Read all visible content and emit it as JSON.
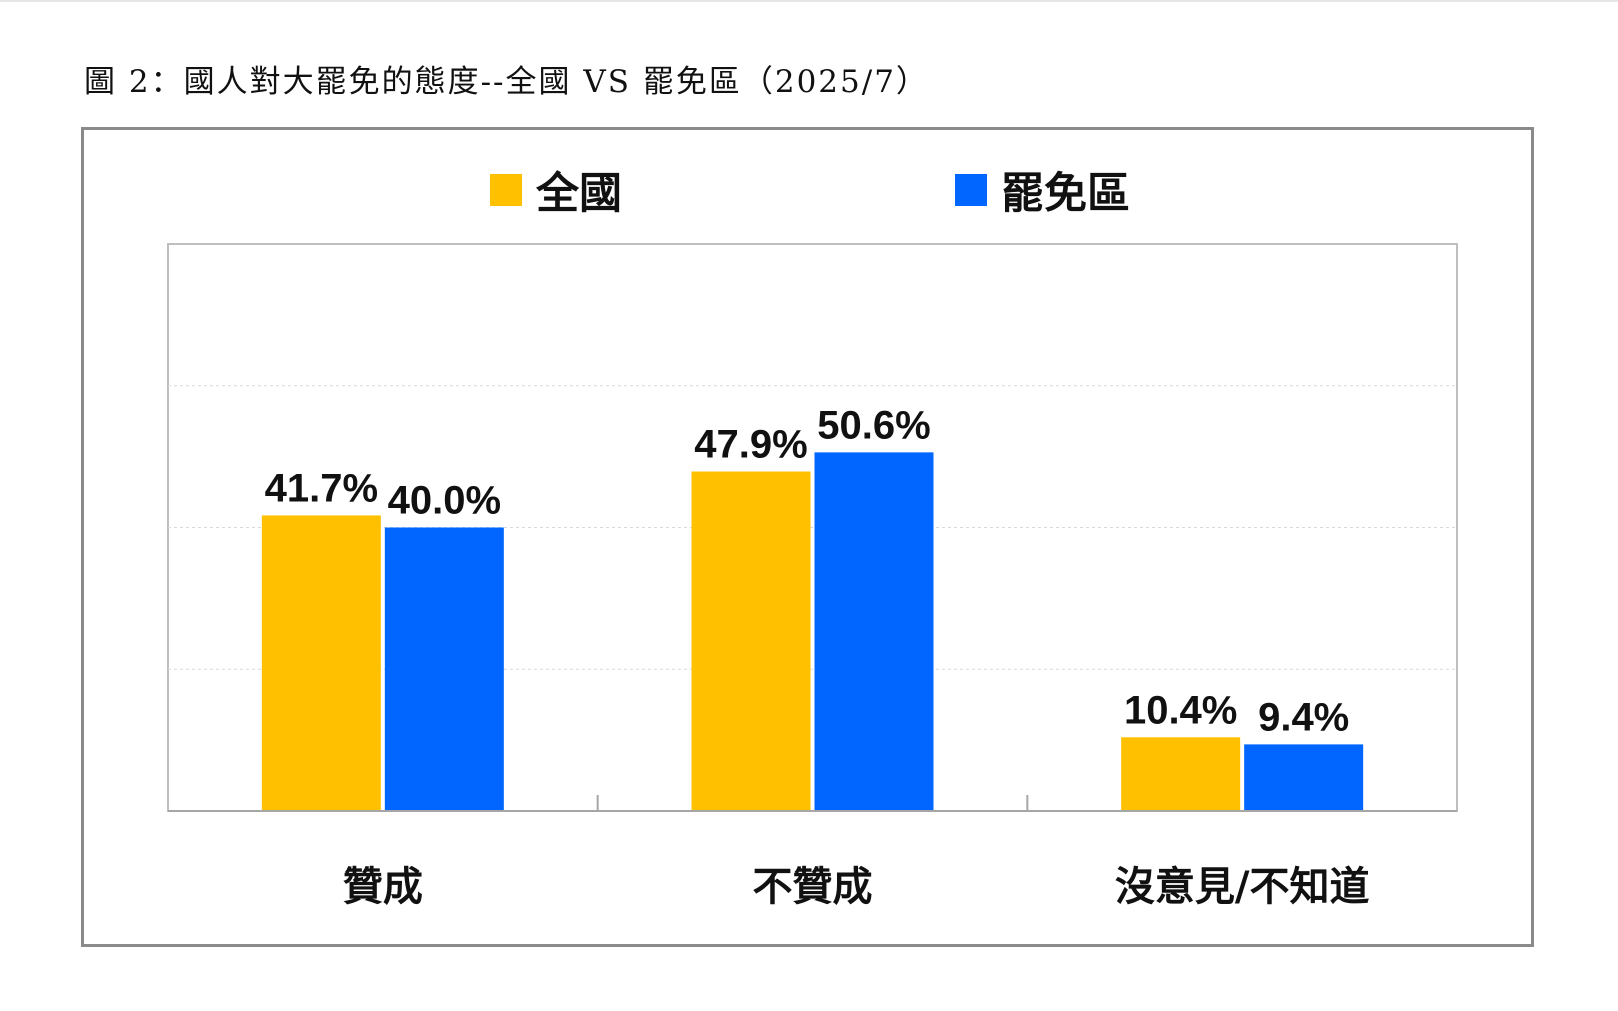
{
  "caption": "圖 2：國人對大罷免的態度--全國 VS 罷免區（2025/7）",
  "chart_data": {
    "type": "bar",
    "title": "圖 2：國人對大罷免的態度--全國 VS 罷免區（2025/7）",
    "categories": [
      "贊成",
      "不贊成",
      "沒意見/不知道"
    ],
    "series": [
      {
        "name": "全國",
        "color": "#FFC000",
        "values": [
          41.7,
          47.9,
          10.4
        ],
        "labels": [
          "41.7%",
          "47.9%",
          "10.4%"
        ]
      },
      {
        "name": "罷免區",
        "color": "#0066FF",
        "values": [
          40.0,
          50.6,
          9.4
        ],
        "labels": [
          "40.0%",
          "50.6%",
          "9.4%"
        ]
      }
    ],
    "ylim": [
      0,
      80
    ],
    "gridlines": [
      20,
      40,
      60
    ],
    "xlabel": "",
    "ylabel": "",
    "legend_position": "top",
    "grid": true
  }
}
